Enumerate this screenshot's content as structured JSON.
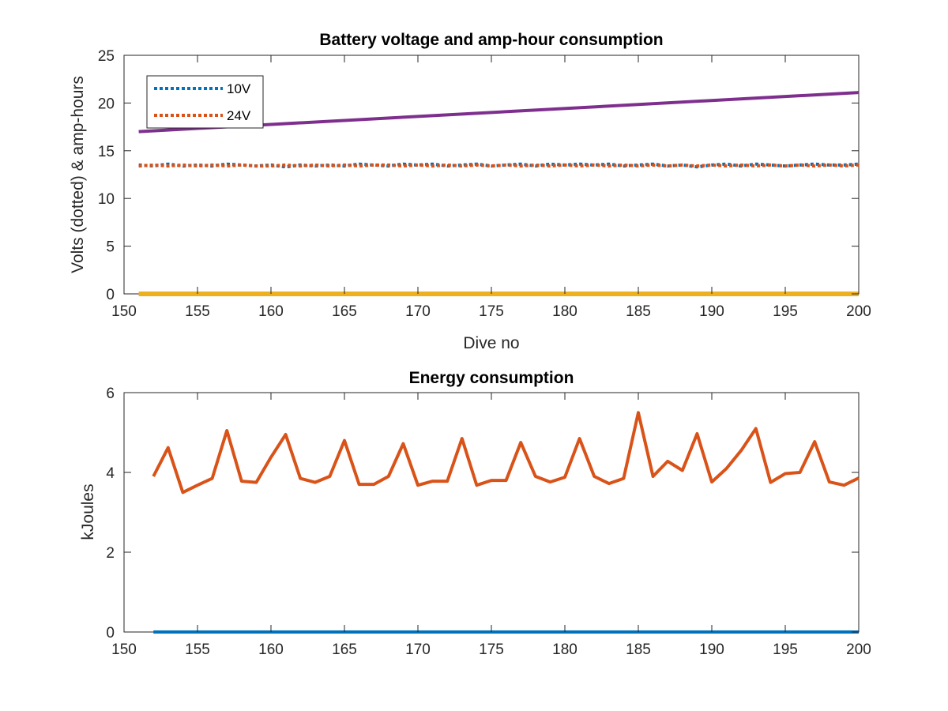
{
  "chart_data": [
    {
      "type": "line",
      "title": "Battery voltage and amp-hour consumption",
      "xlabel": "Dive no",
      "ylabel": "Volts (dotted) & amp-hours",
      "xlim": [
        150,
        200
      ],
      "ylim": [
        0,
        25
      ],
      "xticks": [
        150,
        155,
        160,
        165,
        170,
        175,
        180,
        185,
        190,
        195,
        200
      ],
      "yticks": [
        0,
        5,
        10,
        15,
        20,
        25
      ],
      "legend": {
        "placement": "top-left",
        "entries": [
          "10V",
          "24V"
        ]
      },
      "series": [
        {
          "name": "10V",
          "style": "dotted",
          "color": "#0072BD",
          "x": [
            151,
            152,
            153,
            154,
            155,
            156,
            157,
            158,
            159,
            160,
            161,
            162,
            163,
            164,
            165,
            166,
            167,
            168,
            169,
            170,
            171,
            172,
            173,
            174,
            175,
            176,
            177,
            178,
            179,
            180,
            181,
            182,
            183,
            184,
            185,
            186,
            187,
            188,
            189,
            190,
            191,
            192,
            193,
            194,
            195,
            196,
            197,
            198,
            199,
            200
          ],
          "y": [
            13.5,
            13.4,
            13.6,
            13.4,
            13.5,
            13.4,
            13.6,
            13.5,
            13.4,
            13.5,
            13.3,
            13.5,
            13.4,
            13.5,
            13.4,
            13.6,
            13.5,
            13.4,
            13.6,
            13.5,
            13.6,
            13.4,
            13.5,
            13.6,
            13.4,
            13.5,
            13.6,
            13.4,
            13.6,
            13.5,
            13.6,
            13.5,
            13.6,
            13.4,
            13.5,
            13.6,
            13.4,
            13.5,
            13.3,
            13.5,
            13.6,
            13.4,
            13.6,
            13.5,
            13.4,
            13.5,
            13.6,
            13.5,
            13.5,
            13.6
          ]
        },
        {
          "name": "24V",
          "style": "dotted",
          "color": "#D95319",
          "x": [
            151,
            152,
            153,
            154,
            155,
            156,
            157,
            158,
            159,
            160,
            161,
            162,
            163,
            164,
            165,
            166,
            167,
            168,
            169,
            170,
            171,
            172,
            173,
            174,
            175,
            176,
            177,
            178,
            179,
            180,
            181,
            182,
            183,
            184,
            185,
            186,
            187,
            188,
            189,
            190,
            191,
            192,
            193,
            194,
            195,
            196,
            197,
            198,
            199,
            200
          ],
          "y": [
            13.4,
            13.5,
            13.4,
            13.5,
            13.4,
            13.5,
            13.4,
            13.5,
            13.4,
            13.4,
            13.5,
            13.4,
            13.5,
            13.4,
            13.5,
            13.4,
            13.5,
            13.5,
            13.4,
            13.5,
            13.4,
            13.5,
            13.4,
            13.5,
            13.4,
            13.5,
            13.4,
            13.5,
            13.4,
            13.5,
            13.4,
            13.5,
            13.4,
            13.5,
            13.4,
            13.5,
            13.4,
            13.5,
            13.4,
            13.5,
            13.4,
            13.5,
            13.4,
            13.5,
            13.4,
            13.5,
            13.4,
            13.5,
            13.4,
            13.5
          ]
        },
        {
          "style": "solid",
          "color": "#EDB120",
          "x": [
            151,
            200
          ],
          "y": [
            0,
            0
          ]
        },
        {
          "style": "solid",
          "color": "#7E2F8E",
          "x": [
            151,
            200
          ],
          "y": [
            17,
            21.1
          ]
        }
      ]
    },
    {
      "type": "line",
      "title": "Energy consumption",
      "xlabel": "",
      "ylabel": "kJoules",
      "xlim": [
        150,
        200
      ],
      "ylim": [
        0,
        6
      ],
      "xticks": [
        150,
        155,
        160,
        165,
        170,
        175,
        180,
        185,
        190,
        195,
        200
      ],
      "yticks": [
        0,
        2,
        4,
        6
      ],
      "series": [
        {
          "style": "solid",
          "color": "#0072BD",
          "x": [
            152,
            200
          ],
          "y": [
            0,
            0
          ]
        },
        {
          "style": "solid",
          "color": "#D95319",
          "x": [
            152,
            153,
            154,
            155,
            156,
            157,
            158,
            159,
            160,
            161,
            162,
            163,
            164,
            165,
            166,
            167,
            168,
            169,
            170,
            171,
            172,
            173,
            174,
            175,
            176,
            177,
            178,
            179,
            180,
            181,
            182,
            183,
            184,
            185,
            186,
            187,
            188,
            189,
            190,
            191,
            192,
            193,
            194,
            195,
            196,
            197,
            198,
            199,
            200
          ],
          "y": [
            3.9,
            4.62,
            3.5,
            3.68,
            3.85,
            5.05,
            3.78,
            3.75,
            4.38,
            4.95,
            3.85,
            3.75,
            3.9,
            4.8,
            3.7,
            3.7,
            3.9,
            4.72,
            3.68,
            3.78,
            3.78,
            4.85,
            3.68,
            3.8,
            3.8,
            4.75,
            3.9,
            3.76,
            3.88,
            4.85,
            3.9,
            3.72,
            3.85,
            5.5,
            3.9,
            4.28,
            4.05,
            4.97,
            3.76,
            4.1,
            4.55,
            5.1,
            3.75,
            3.97,
            4.0,
            4.77,
            3.76,
            3.68,
            3.86
          ]
        }
      ]
    }
  ]
}
